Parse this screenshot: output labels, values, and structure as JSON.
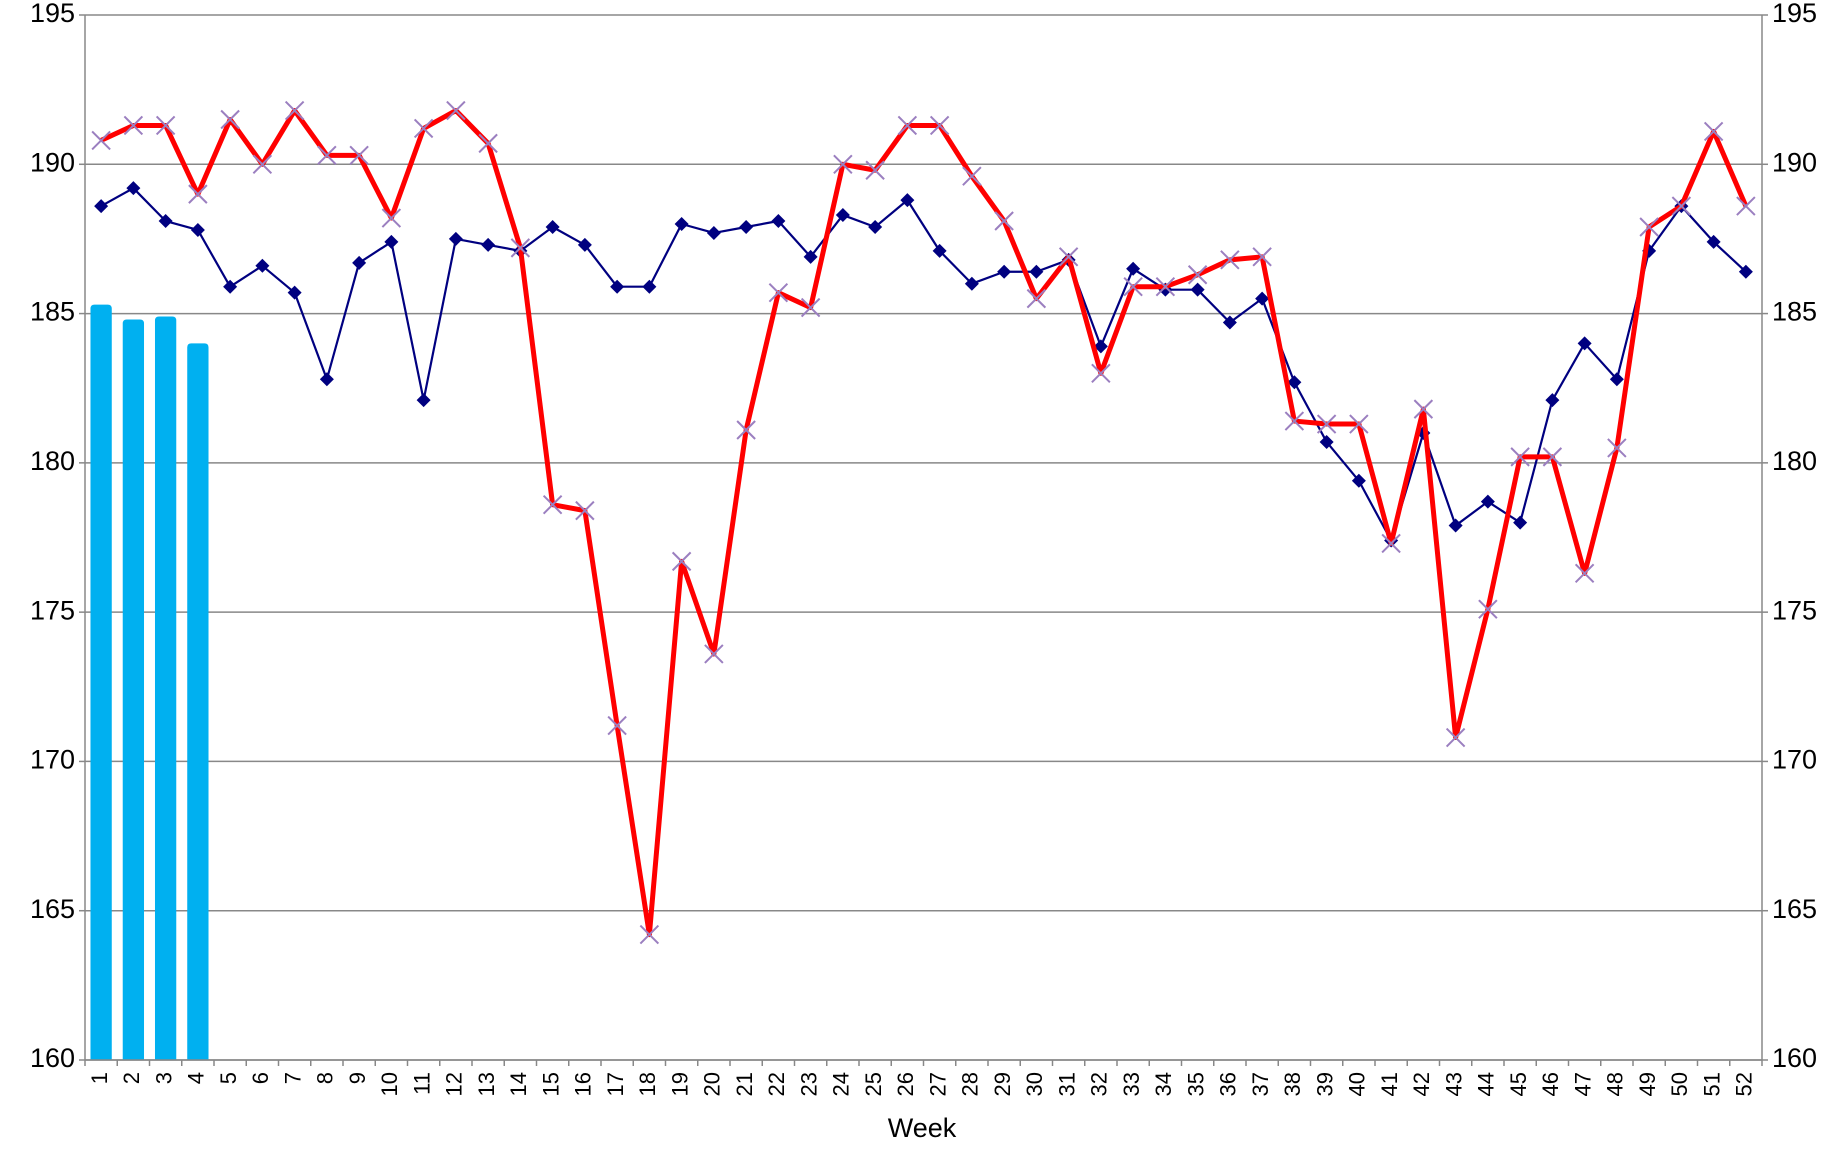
{
  "chart_data": {
    "type": "combo",
    "xlabel": "Week",
    "categories": [
      "1",
      "2",
      "3",
      "4",
      "5",
      "6",
      "7",
      "8",
      "9",
      "10",
      "11",
      "12",
      "13",
      "14",
      "15",
      "16",
      "17",
      "18",
      "19",
      "20",
      "21",
      "22",
      "23",
      "24",
      "25",
      "26",
      "27",
      "28",
      "29",
      "30",
      "31",
      "32",
      "33",
      "34",
      "35",
      "36",
      "37",
      "38",
      "39",
      "40",
      "41",
      "42",
      "43",
      "44",
      "45",
      "46",
      "47",
      "48",
      "49",
      "50",
      "51",
      "52"
    ],
    "series": [
      {
        "type": "bar",
        "color": "#00b0f0",
        "values": [
          185.3,
          184.8,
          184.9,
          184.0,
          null,
          null,
          null,
          null,
          null,
          null,
          null,
          null,
          null,
          null,
          null,
          null,
          null,
          null,
          null,
          null,
          null,
          null,
          null,
          null,
          null,
          null,
          null,
          null,
          null,
          null,
          null,
          null,
          null,
          null,
          null,
          null,
          null,
          null,
          null,
          null,
          null,
          null,
          null,
          null,
          null,
          null,
          null,
          null,
          null,
          null,
          null,
          null
        ]
      },
      {
        "type": "line",
        "color": "#000080",
        "marker": "diamond",
        "marker_color": "#000080",
        "values": [
          188.6,
          189.2,
          188.1,
          187.8,
          185.9,
          186.6,
          185.7,
          182.8,
          186.7,
          187.4,
          182.1,
          187.5,
          187.3,
          187.1,
          187.9,
          187.3,
          185.9,
          185.9,
          188.0,
          187.7,
          187.9,
          188.1,
          186.9,
          188.3,
          187.9,
          188.8,
          187.1,
          186.0,
          186.4,
          186.4,
          186.8,
          183.9,
          186.5,
          185.8,
          185.8,
          184.7,
          185.5,
          182.7,
          180.7,
          179.4,
          177.4,
          181.0,
          177.9,
          178.7,
          178.0,
          182.1,
          184.0,
          182.8,
          187.1,
          188.6,
          187.4,
          186.4
        ]
      },
      {
        "type": "line",
        "color": "#ff0000",
        "marker": "x",
        "marker_color": "#9b7fc0",
        "values": [
          190.8,
          191.3,
          191.3,
          189.0,
          191.5,
          190.0,
          191.8,
          190.3,
          190.3,
          188.2,
          191.2,
          191.8,
          190.7,
          187.2,
          178.6,
          178.4,
          171.2,
          164.2,
          176.7,
          173.6,
          181.1,
          185.7,
          185.2,
          190.0,
          189.8,
          191.3,
          191.3,
          189.6,
          188.1,
          185.5,
          186.9,
          183.0,
          185.9,
          185.9,
          186.3,
          186.8,
          186.9,
          181.4,
          181.3,
          181.3,
          177.3,
          181.8,
          170.8,
          175.1,
          180.2,
          180.2,
          176.3,
          180.5,
          187.9,
          188.6,
          191.1,
          188.6
        ]
      }
    ],
    "ylim": [
      160,
      195
    ],
    "yticks": [
      160,
      165,
      170,
      175,
      180,
      185,
      190,
      195
    ],
    "y2lim": [
      160,
      195
    ],
    "y2ticks": [
      160,
      165,
      170,
      175,
      180,
      185,
      190,
      195
    ],
    "grid": true
  }
}
